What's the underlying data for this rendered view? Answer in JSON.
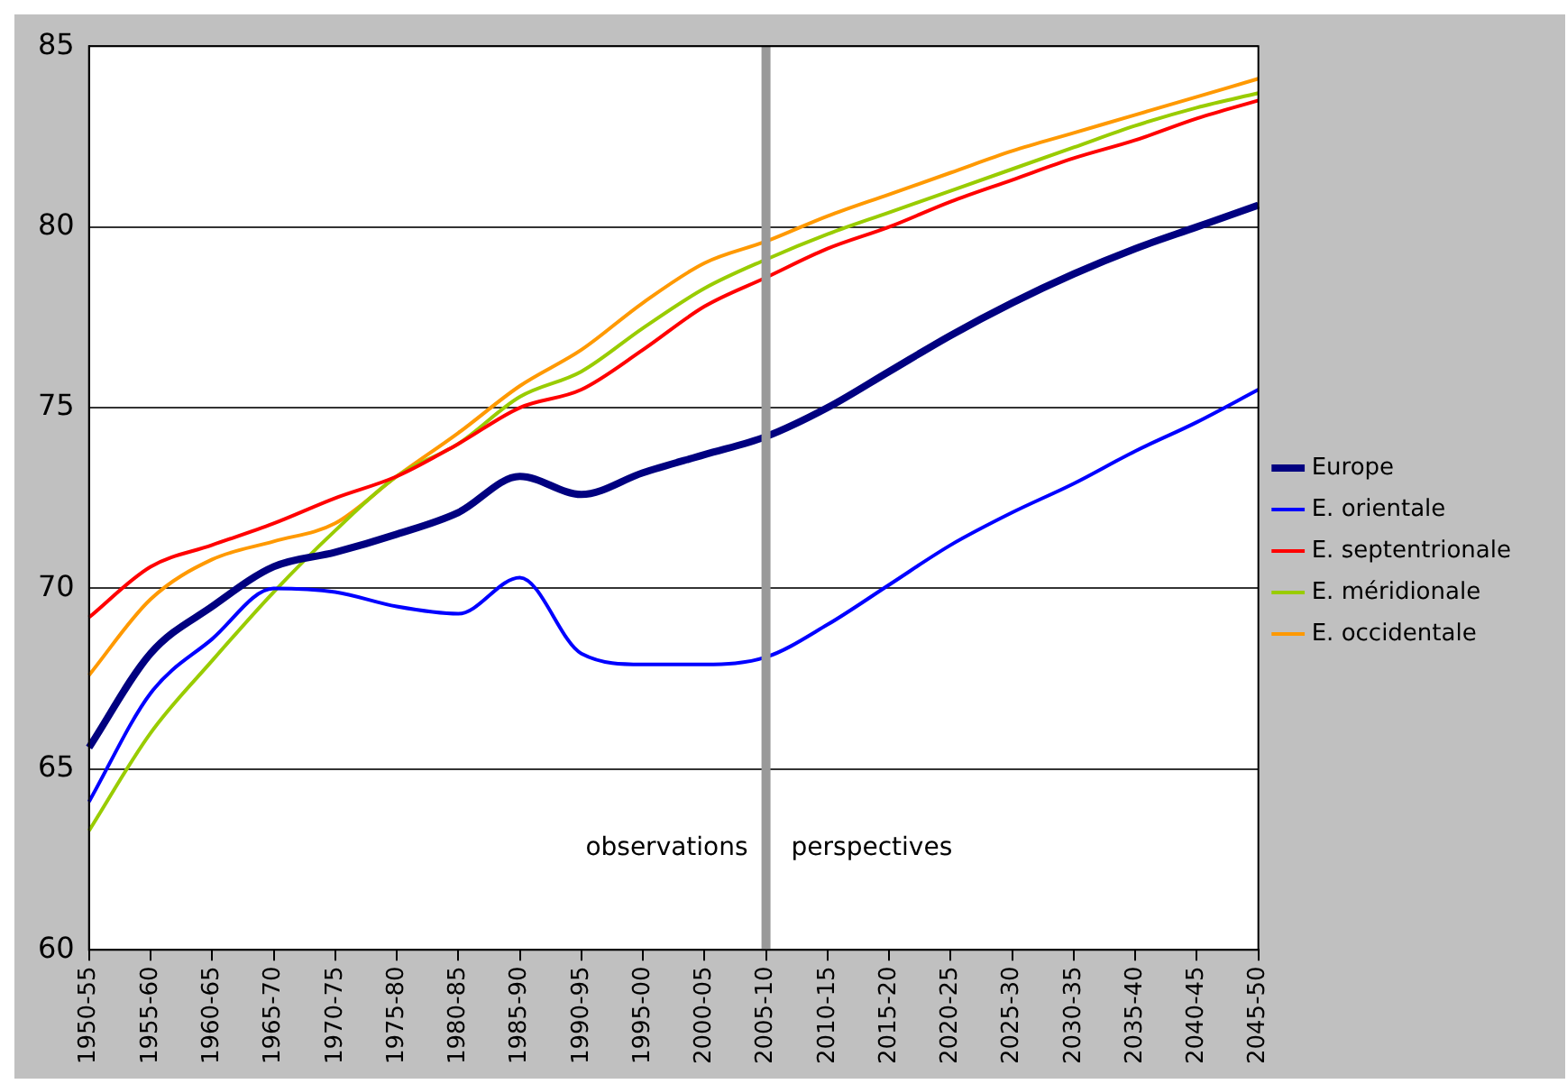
{
  "chart_data": {
    "type": "line",
    "categories": [
      "1950-55",
      "1955-60",
      "1960-65",
      "1965-70",
      "1970-75",
      "1975-80",
      "1980-85",
      "1985-90",
      "1990-95",
      "1995-00",
      "2000-05",
      "2005-10",
      "2010-15",
      "2015-20",
      "2020-25",
      "2025-30",
      "2030-35",
      "2035-40",
      "2040-45",
      "2045-50"
    ],
    "series": [
      {
        "name": "Europe",
        "color": "#000080",
        "values": [
          65.6,
          68.2,
          69.5,
          70.6,
          71.0,
          71.5,
          72.1,
          73.1,
          72.6,
          73.2,
          73.7,
          74.2,
          75.0,
          76.0,
          77.0,
          77.9,
          78.7,
          79.4,
          80.0,
          80.6
        ]
      },
      {
        "name": "E. orientale",
        "color": "#0000ff",
        "values": [
          64.1,
          67.1,
          68.6,
          70.0,
          69.9,
          69.5,
          69.3,
          70.3,
          68.2,
          67.9,
          67.9,
          68.1,
          69.0,
          70.1,
          71.2,
          72.1,
          72.9,
          73.8,
          74.6,
          75.5
        ]
      },
      {
        "name": "E. septentrionale",
        "color": "#ff0000",
        "values": [
          69.2,
          70.6,
          71.2,
          71.8,
          72.5,
          73.1,
          74.0,
          75.0,
          75.5,
          76.6,
          77.8,
          78.6,
          79.4,
          80.0,
          80.7,
          81.3,
          81.9,
          82.4,
          83.0,
          83.5
        ]
      },
      {
        "name": "E. méridionale",
        "color": "#99cc00",
        "values": [
          63.3,
          66.0,
          68.0,
          69.9,
          71.6,
          73.1,
          74.0,
          75.3,
          76.0,
          77.2,
          78.3,
          79.1,
          79.8,
          80.4,
          81.0,
          81.6,
          82.2,
          82.8,
          83.3,
          83.7
        ]
      },
      {
        "name": "E. occidentale",
        "color": "#ff9900",
        "values": [
          67.6,
          69.7,
          70.8,
          71.3,
          71.8,
          73.1,
          74.3,
          75.6,
          76.6,
          77.9,
          79.0,
          79.6,
          80.3,
          80.9,
          81.5,
          82.1,
          82.6,
          83.1,
          83.6,
          84.1
        ]
      }
    ],
    "ylim": [
      60,
      85
    ],
    "yticks": [
      60,
      65,
      70,
      75,
      80,
      85
    ],
    "grid": "y",
    "legend": "right",
    "marker": "none",
    "line_style": "solid",
    "ref_lines": [
      {
        "axis": "x",
        "value": "2005-10",
        "color": "#999999"
      }
    ],
    "annotations": [
      "observations",
      "perspectives"
    ]
  }
}
